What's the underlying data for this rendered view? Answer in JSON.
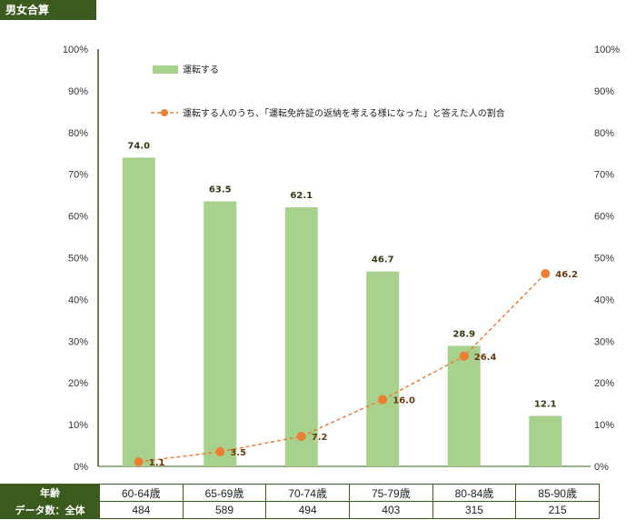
{
  "header": {
    "tag": "男女合算"
  },
  "chart_data": {
    "type": "bar+line",
    "categories": [
      "60-64歳",
      "65-69歳",
      "70-74歳",
      "75-79歳",
      "80-84歳",
      "85-90歳"
    ],
    "series": [
      {
        "name": "運転する",
        "type": "bar",
        "color": "#a9d18e",
        "values": [
          74.0,
          63.5,
          62.1,
          46.7,
          28.9,
          12.1
        ]
      },
      {
        "name": "運転する人のうち、「運転免許証の返納を考える様になった」と答えた人の割合",
        "type": "line",
        "color": "#ed7d31",
        "categories": [
          "60-64歳",
          "65-69歳",
          "70-74歳",
          "75-79歳",
          "80-84歳",
          "85-90歳"
        ],
        "values": [
          1.1,
          3.5,
          7.2,
          16.0,
          26.4,
          46.2
        ]
      }
    ],
    "bar_labels": [
      "74.0",
      "63.5",
      "62.1",
      "46.7",
      "28.9",
      "12.1"
    ],
    "line_labels": [
      "1.1",
      "3.5",
      "7.2",
      "16.0",
      "26.4",
      "46.2"
    ],
    "y_ticks": [
      "0%",
      "10%",
      "20%",
      "30%",
      "40%",
      "50%",
      "60%",
      "70%",
      "80%",
      "90%",
      "100%"
    ],
    "ylim": [
      0,
      100
    ],
    "legend": [
      "運転する",
      "運転する人のうち、「運転免許証の返納を考える様になった」と答えた人の割合"
    ]
  },
  "table": {
    "row1_label": "年齢",
    "row2_label": "データ数：全体",
    "ages": [
      "60-64歳",
      "65-69歳",
      "70-74歳",
      "75-79歳",
      "80-84歳",
      "85-90歳"
    ],
    "counts": [
      "484",
      "589",
      "494",
      "403",
      "315",
      "215"
    ]
  }
}
